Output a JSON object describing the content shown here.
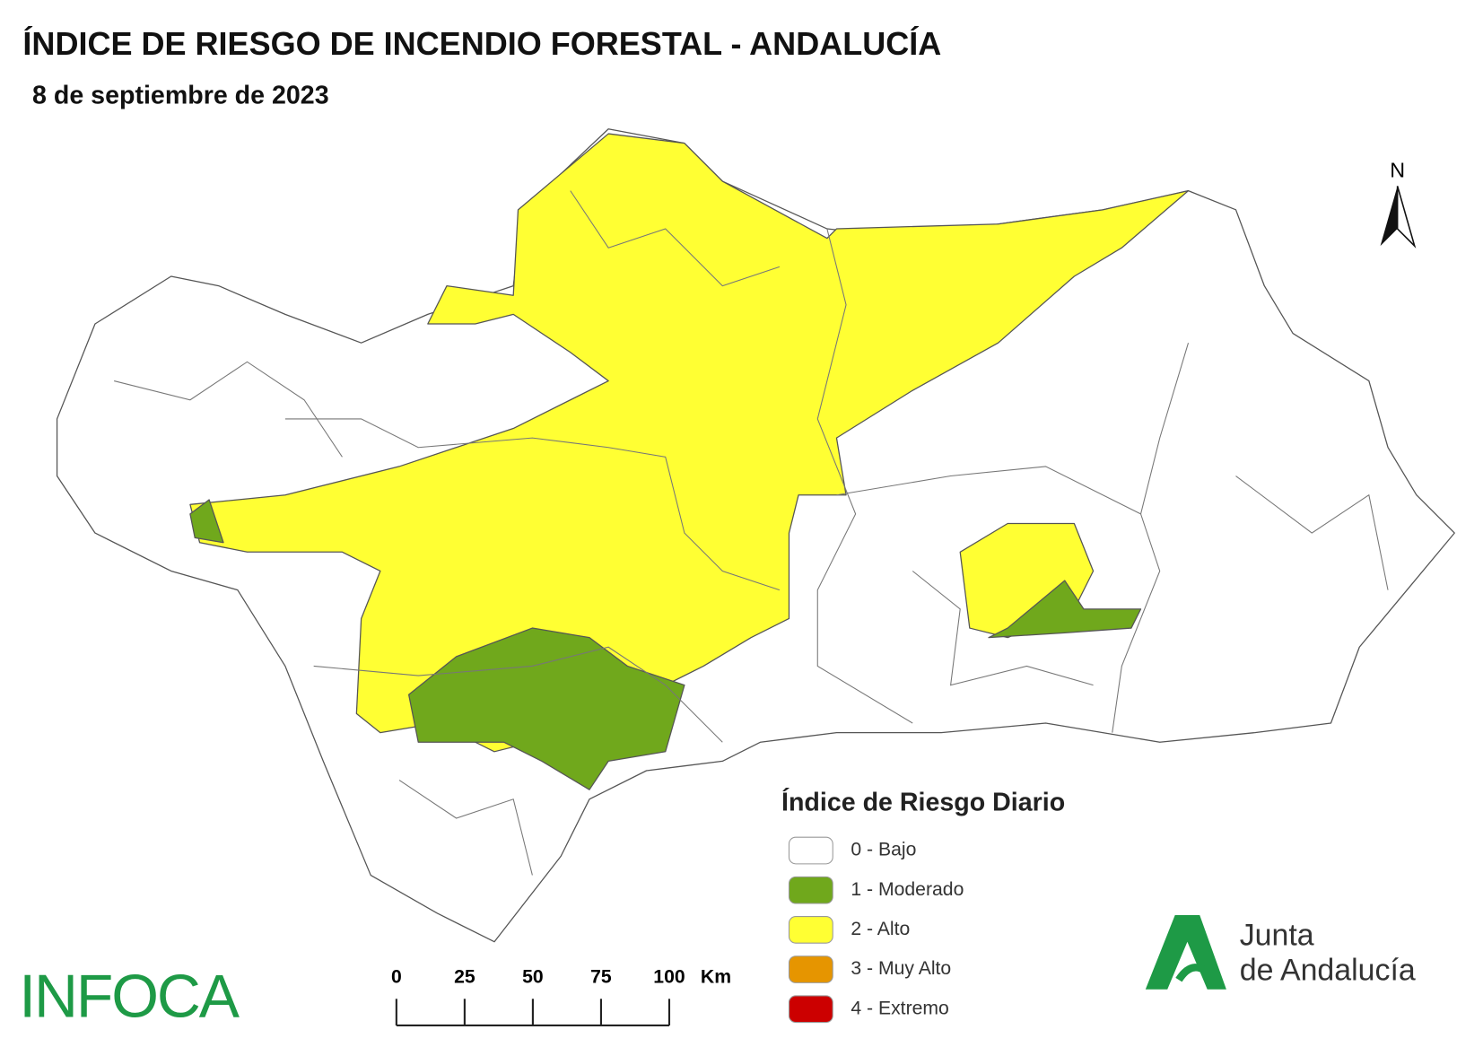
{
  "header": {
    "title": "ÍNDICE DE RIESGO DE INCENDIO FORESTAL - ANDALUCÍA",
    "subtitle": "8 de septiembre de 2023"
  },
  "north_arrow": {
    "label": "N"
  },
  "legend": {
    "title": "Índice de Riesgo Diario",
    "items": [
      {
        "label": "0 - Bajo",
        "color": "#ffffff"
      },
      {
        "label": "1 - Moderado",
        "color": "#70a81c"
      },
      {
        "label": "2 - Alto",
        "color": "#ffff33"
      },
      {
        "label": "3 - Muy Alto",
        "color": "#e69500"
      },
      {
        "label": "4 - Extremo",
        "color": "#cc0000"
      }
    ]
  },
  "scale_bar": {
    "ticks": [
      0,
      25,
      50,
      75,
      100
    ],
    "unit": "Km"
  },
  "logos": {
    "infoca": "INFOCA",
    "junta": [
      "Junta",
      "de Andalucía"
    ]
  }
}
